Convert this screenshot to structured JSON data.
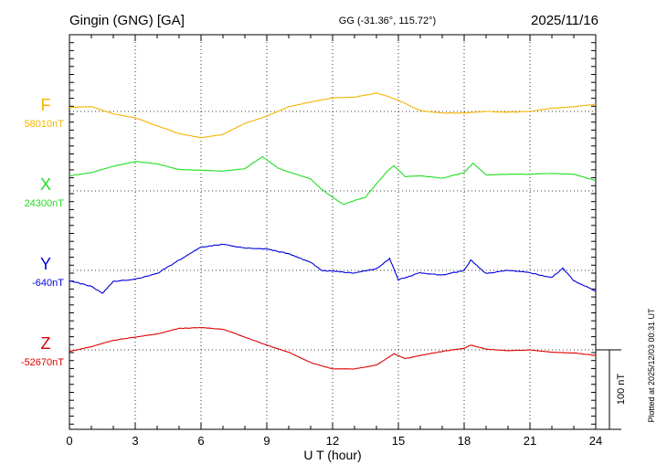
{
  "header": {
    "station": "Gingin (GNG)  [GA]",
    "coords": "GG (-31.36°, 115.72°)",
    "date": "2025/11/16"
  },
  "footer": {
    "plotted": "Plotted at 2025/12/03 00:31 UT"
  },
  "chart_data": {
    "type": "line",
    "xlabel": "U T (hour)",
    "xlim": [
      0,
      24
    ],
    "xticks": [
      0,
      3,
      6,
      9,
      12,
      15,
      18,
      21,
      24
    ],
    "scale_bar": {
      "label": "100 nT",
      "value_nT": 100
    },
    "series": [
      {
        "name": "F",
        "baseline": "58010nT",
        "color": "#f5b400",
        "points": [
          [
            0,
            0.5
          ],
          [
            1,
            0.6
          ],
          [
            2,
            -0.3
          ],
          [
            3,
            -0.8
          ],
          [
            4,
            -1.8
          ],
          [
            5,
            -2.8
          ],
          [
            6,
            -3.3
          ],
          [
            7,
            -2.9
          ],
          [
            8,
            -1.5
          ],
          [
            9,
            -0.6
          ],
          [
            10,
            0.6
          ],
          [
            11,
            1.2
          ],
          [
            12,
            1.7
          ],
          [
            13,
            1.8
          ],
          [
            14,
            2.3
          ],
          [
            14.5,
            1.9
          ],
          [
            15,
            1.4
          ],
          [
            16,
            0.1
          ],
          [
            17,
            -0.2
          ],
          [
            18,
            -0.2
          ],
          [
            19,
            0
          ],
          [
            20,
            -0.1
          ],
          [
            21,
            0
          ],
          [
            22,
            0.4
          ],
          [
            23,
            0.6
          ],
          [
            24,
            0.9
          ]
        ]
      },
      {
        "name": "X",
        "baseline": "24300nT",
        "color": "#22dd22",
        "points": [
          [
            0,
            1.9
          ],
          [
            1,
            2.3
          ],
          [
            2,
            3.1
          ],
          [
            3,
            3.7
          ],
          [
            4,
            3.4
          ],
          [
            5,
            2.7
          ],
          [
            6,
            2.6
          ],
          [
            7,
            2.5
          ],
          [
            8,
            2.8
          ],
          [
            8.8,
            4.3
          ],
          [
            9.5,
            2.9
          ],
          [
            10,
            2.4
          ],
          [
            11,
            1.5
          ],
          [
            11.5,
            0.2
          ],
          [
            12,
            -0.8
          ],
          [
            12.5,
            -1.7
          ],
          [
            13,
            -1.2
          ],
          [
            13.5,
            -0.8
          ],
          [
            14,
            0.9
          ],
          [
            14.5,
            2.5
          ],
          [
            14.8,
            3.2
          ],
          [
            15.3,
            1.8
          ],
          [
            16,
            1.9
          ],
          [
            17,
            1.6
          ],
          [
            18,
            2.3
          ],
          [
            18.4,
            3.5
          ],
          [
            19,
            2.0
          ],
          [
            20,
            2.1
          ],
          [
            21,
            2.1
          ],
          [
            22,
            2.2
          ],
          [
            23,
            2.1
          ],
          [
            24,
            1.3
          ]
        ]
      },
      {
        "name": "Y",
        "baseline": "-640nT",
        "color": "#0000dd",
        "points": [
          [
            0,
            -1.3
          ],
          [
            1,
            -2.0
          ],
          [
            1.5,
            -2.9
          ],
          [
            2,
            -1.4
          ],
          [
            3,
            -1.1
          ],
          [
            4,
            -0.4
          ],
          [
            5,
            1.3
          ],
          [
            6,
            2.9
          ],
          [
            7,
            3.3
          ],
          [
            8,
            2.8
          ],
          [
            9,
            2.7
          ],
          [
            10,
            2.1
          ],
          [
            11,
            1.0
          ],
          [
            11.5,
            0
          ],
          [
            12,
            -0.1
          ],
          [
            13,
            -0.3
          ],
          [
            14,
            0.2
          ],
          [
            14.6,
            1.5
          ],
          [
            15,
            -1.2
          ],
          [
            16,
            -0.3
          ],
          [
            17,
            -0.6
          ],
          [
            18,
            0
          ],
          [
            18.3,
            1.3
          ],
          [
            19,
            -0.4
          ],
          [
            20,
            0
          ],
          [
            21,
            -0.3
          ],
          [
            22,
            -0.9
          ],
          [
            22.5,
            0.3
          ],
          [
            23,
            -1.3
          ],
          [
            24,
            -2.6
          ]
        ]
      },
      {
        "name": "Z",
        "baseline": "-52670nT",
        "color": "#dd0000",
        "points": [
          [
            0,
            -0.2
          ],
          [
            1,
            0.4
          ],
          [
            2,
            1.2
          ],
          [
            3,
            1.6
          ],
          [
            4,
            2.0
          ],
          [
            5,
            2.7
          ],
          [
            6,
            2.8
          ],
          [
            7,
            2.6
          ],
          [
            8,
            1.6
          ],
          [
            9,
            0.6
          ],
          [
            10,
            -0.3
          ],
          [
            11,
            -1.6
          ],
          [
            12,
            -2.4
          ],
          [
            13,
            -2.4
          ],
          [
            14,
            -1.9
          ],
          [
            14.8,
            -0.5
          ],
          [
            15.3,
            -1.1
          ],
          [
            16,
            -0.7
          ],
          [
            17,
            -0.2
          ],
          [
            18,
            0.2
          ],
          [
            18.3,
            0.6
          ],
          [
            19,
            0.1
          ],
          [
            20,
            -0.1
          ],
          [
            21,
            0
          ],
          [
            22,
            -0.3
          ],
          [
            23,
            -0.4
          ],
          [
            24,
            -0.7
          ]
        ]
      }
    ]
  }
}
